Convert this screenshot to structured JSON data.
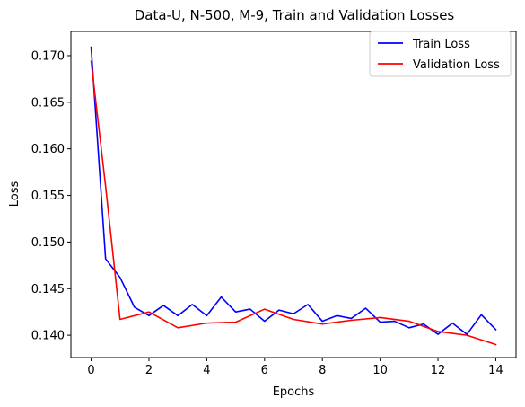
{
  "chart_data": {
    "type": "line",
    "title": "Data-U, N-500, M-9, Train and Validation Losses",
    "xlabel": "Epochs",
    "ylabel": "Loss",
    "xlim": [
      -0.7,
      14.7
    ],
    "ylim": [
      0.1376,
      0.1726
    ],
    "xticks": [
      0,
      2,
      4,
      6,
      8,
      10,
      12,
      14
    ],
    "yticks": [
      0.14,
      0.145,
      0.15,
      0.155,
      0.16,
      0.165,
      0.17
    ],
    "ytick_labels": [
      "0.140",
      "0.145",
      "0.150",
      "0.155",
      "0.160",
      "0.165",
      "0.170"
    ],
    "grid": false,
    "legend_position": "top-right",
    "series": [
      {
        "name": "Train Loss",
        "color": "#0000ff",
        "x": [
          0,
          0.5,
          1,
          1.5,
          2,
          2.5,
          3,
          3.5,
          4,
          4.5,
          5,
          5.5,
          6,
          6.5,
          7,
          7.5,
          8,
          8.5,
          9,
          9.5,
          10,
          10.5,
          11,
          11.5,
          12,
          12.5,
          13,
          13.5,
          14
        ],
        "values": [
          0.1709,
          0.1482,
          0.1462,
          0.143,
          0.1421,
          0.1432,
          0.1421,
          0.1433,
          0.1421,
          0.1441,
          0.1425,
          0.1428,
          0.1415,
          0.1427,
          0.1423,
          0.1433,
          0.1415,
          0.1421,
          0.1418,
          0.1429,
          0.1414,
          0.1415,
          0.1408,
          0.1412,
          0.1401,
          0.1413,
          0.1401,
          0.1422,
          0.1406
        ]
      },
      {
        "name": "Validation Loss",
        "color": "#ff0000",
        "x": [
          0,
          0.5,
          1,
          2,
          3,
          4,
          5,
          6,
          7,
          8,
          9,
          10,
          11,
          12,
          13,
          14
        ],
        "values": [
          0.1694,
          0.156,
          0.1417,
          0.1425,
          0.1408,
          0.1413,
          0.1414,
          0.1428,
          0.1417,
          0.1412,
          0.1416,
          0.1419,
          0.1415,
          0.1404,
          0.14,
          0.139
        ]
      }
    ]
  }
}
